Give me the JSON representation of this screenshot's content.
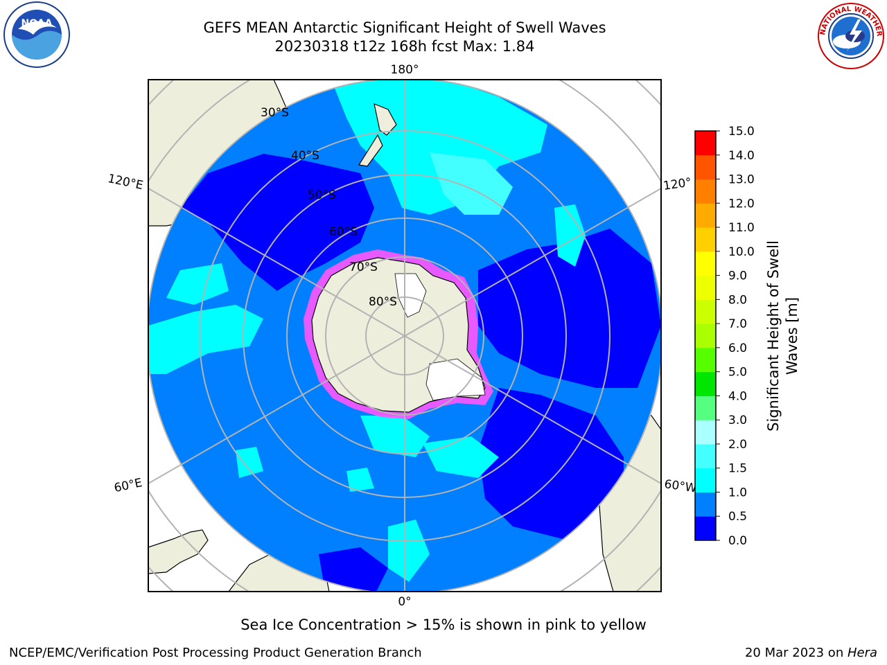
{
  "title": {
    "line1": "GEFS MEAN Antarctic Significant Height of Swell Waves",
    "line2": "20230318 t12z 168h fcst   Max: 1.84"
  },
  "logos": {
    "left": {
      "icon": "noaa-logo",
      "text": "NOAA"
    },
    "right": {
      "icon": "national-weather-service-logo",
      "text": "NATIONAL WEATHER SERVICE"
    }
  },
  "map": {
    "projection": "south-polar-stereographic",
    "longitude_labels": {
      "top": "180°",
      "bottom": "0°",
      "left_upper": "120°E",
      "left_lower": "60°E",
      "right_upper": "120°",
      "right_lower": "60°W"
    },
    "latitude_labels": [
      "30°S",
      "40°S",
      "50°S",
      "60°S",
      "70°S",
      "80°S"
    ],
    "colors": {
      "land": "#eeeedc",
      "ocean_0_0p5": "#0000ff",
      "ocean_0p5_1": "#0080ff",
      "ocean_1_1p5": "#00ffff",
      "ocean_1p5_2": "#44ffff",
      "sea_ice": "#ff55ff",
      "ice_shelf": "#ffffff",
      "grid": "#b3b3b3"
    }
  },
  "colorbar": {
    "label_line1": "Significant Height of Swell",
    "label_line2": "Waves [m]",
    "ticks": [
      "0.0",
      "0.5",
      "1.0",
      "1.5",
      "2.0",
      "3.0",
      "4.0",
      "5.0",
      "6.0",
      "7.0",
      "8.0",
      "9.0",
      "10.0",
      "11.0",
      "12.0",
      "13.0",
      "14.0",
      "15.0"
    ],
    "colors": [
      "#0000ff",
      "#0080ff",
      "#00ffff",
      "#44ffff",
      "#aaffff",
      "#55ff80",
      "#00e600",
      "#55ff00",
      "#aaff00",
      "#ccff00",
      "#eeff00",
      "#ffff00",
      "#ffd000",
      "#ffaa00",
      "#ff8000",
      "#ff5500",
      "#ff0000"
    ]
  },
  "notes": {
    "sea_ice": "Sea Ice Concentration > 15% is shown in pink to yellow"
  },
  "footer": {
    "left": "NCEP/EMC/Verification Post Processing Product Generation Branch",
    "right_prefix": "20 Mar 2023 on ",
    "right_machine": "Hera"
  }
}
